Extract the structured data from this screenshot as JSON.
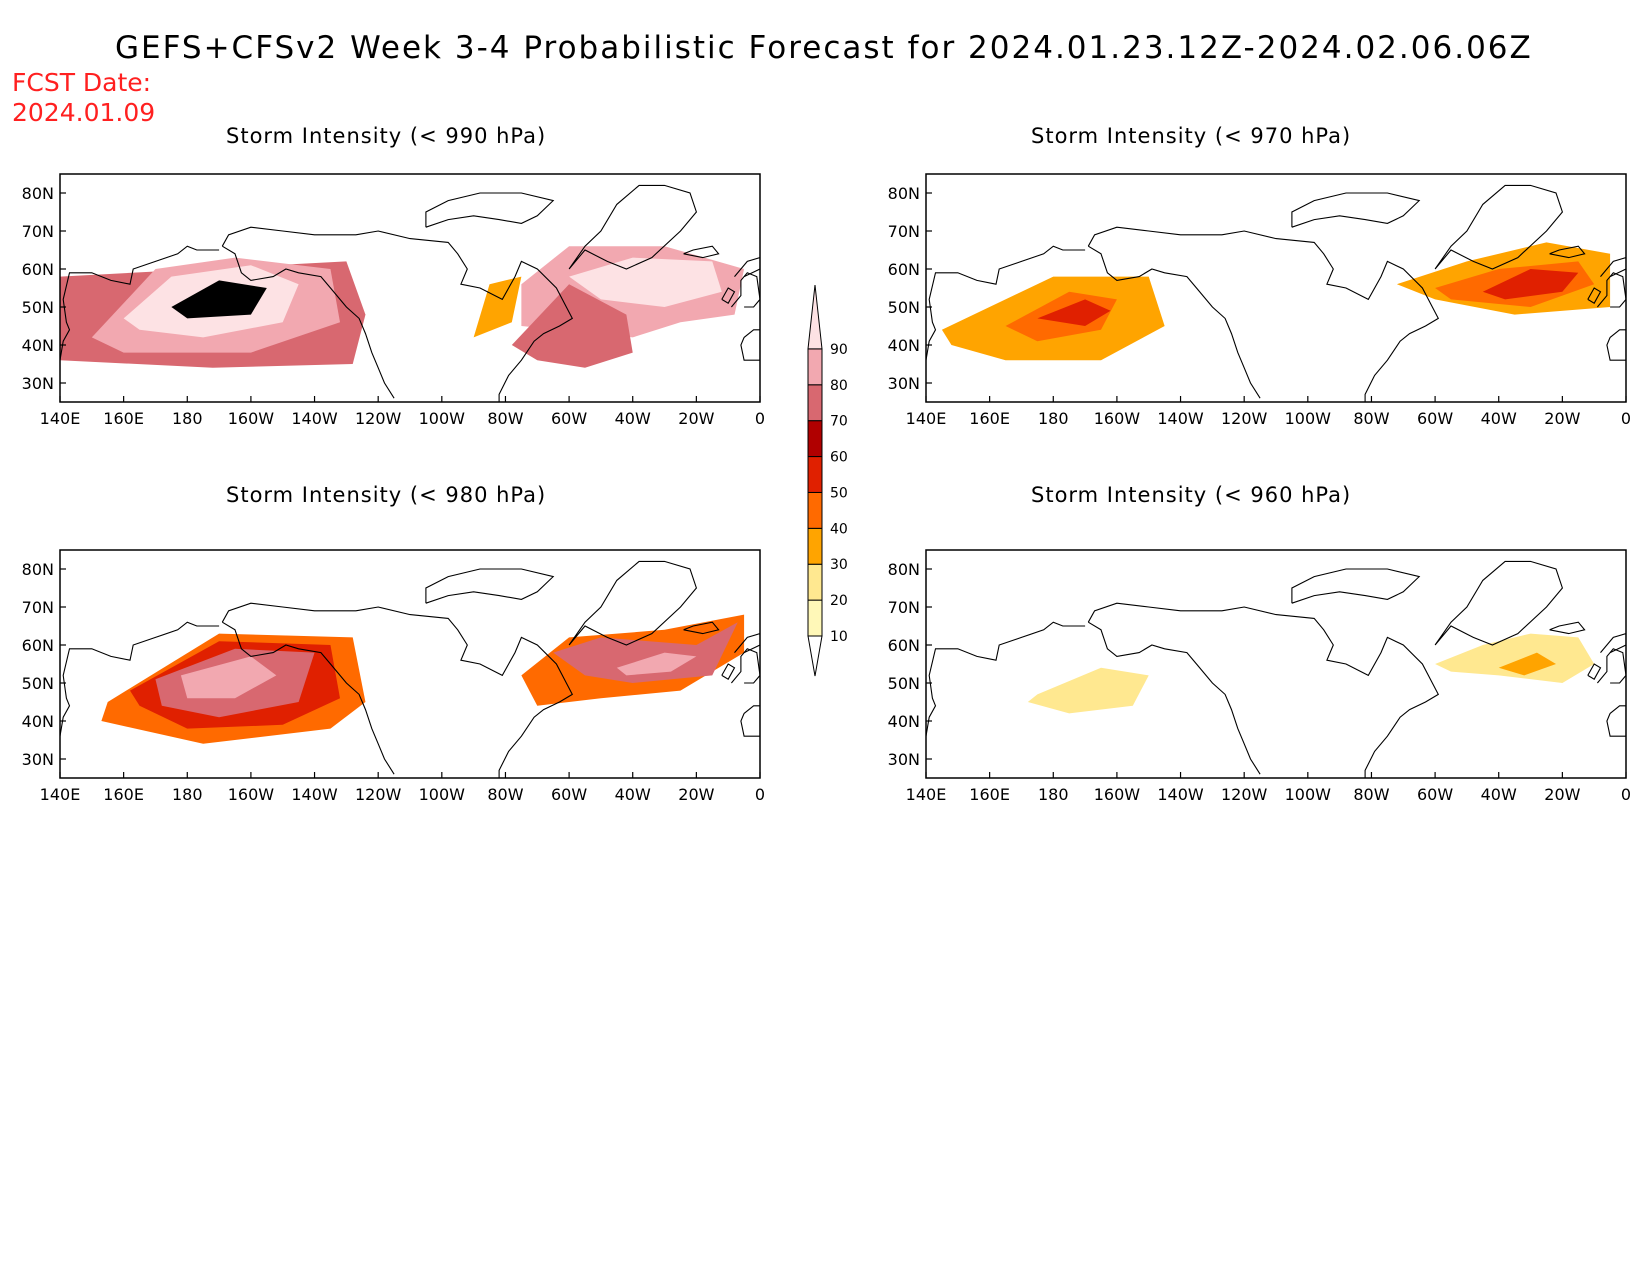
{
  "title": "GEFS+CFSv2 Week 3-4 Probabilistic Forecast for 2024.01.23.12Z-2024.02.06.06Z",
  "fcst_label": "FCST Date:",
  "fcst_date": "2024.01.09",
  "panels": [
    {
      "id": "p990",
      "title": "Storm Intensity (< 990 hPa)"
    },
    {
      "id": "p970",
      "title": "Storm Intensity (< 970 hPa)"
    },
    {
      "id": "p980",
      "title": "Storm Intensity (< 980 hPa)"
    },
    {
      "id": "p960",
      "title": "Storm Intensity (< 960 hPa)"
    }
  ],
  "lon_labels": [
    "140E",
    "160E",
    "180",
    "160W",
    "140W",
    "120W",
    "100W",
    "80W",
    "60W",
    "40W",
    "20W",
    "0"
  ],
  "lat_labels": [
    "80N",
    "70N",
    "60N",
    "50N",
    "40N",
    "30N"
  ],
  "colorbar": {
    "levels": [
      "10",
      "20",
      "30",
      "40",
      "50",
      "60",
      "70",
      "80",
      "90"
    ],
    "colors": [
      "#fff8b8",
      "#ffe890",
      "#ffa400",
      "#ff6a00",
      "#e02000",
      "#b00000",
      "#d86870",
      "#f2a8b0",
      "#fde2e4"
    ]
  },
  "blobs": {
    "p990": [
      {
        "lon": [
          140,
          188,
          232,
          236,
          230,
          140
        ],
        "lat": [
          36,
          34,
          35,
          48,
          62,
          58
        ],
        "cls": 6
      },
      {
        "lon": [
          150,
          170,
          195,
          225,
          228,
          200,
          160,
          150
        ],
        "lat": [
          42,
          60,
          63,
          60,
          46,
          38,
          38,
          42
        ],
        "cls": 7
      },
      {
        "lon": [
          160,
          175,
          200,
          215,
          210,
          185,
          165
        ],
        "lat": [
          47,
          58,
          61,
          56,
          46,
          42,
          44
        ],
        "cls": 8
      },
      {
        "lon": [
          175,
          190,
          205,
          200,
          180
        ],
        "lat": [
          50,
          57,
          55,
          48,
          47
        ],
        "cls": 9
      },
      {
        "lon": [
          285,
          300,
          330,
          355,
          352,
          335,
          320,
          285
        ],
        "lat": [
          56,
          66,
          66,
          60,
          48,
          46,
          42,
          45
        ],
        "cls": 7
      },
      {
        "lon": [
          300,
          320,
          345,
          348,
          330,
          310
        ],
        "lat": [
          58,
          63,
          62,
          54,
          50,
          52
        ],
        "cls": 8
      },
      {
        "lon": [
          282,
          300,
          318,
          320,
          305,
          290
        ],
        "lat": [
          40,
          56,
          48,
          38,
          34,
          36
        ],
        "cls": 6
      },
      {
        "lon": [
          270,
          282,
          285,
          275
        ],
        "lat": [
          42,
          46,
          58,
          56
        ],
        "cls": 2
      }
    ],
    "p970": [
      {
        "lon": [
          145,
          180,
          210,
          215,
          195,
          165,
          148
        ],
        "lat": [
          44,
          58,
          58,
          45,
          36,
          36,
          40
        ],
        "cls": 2
      },
      {
        "lon": [
          165,
          185,
          200,
          195,
          175
        ],
        "lat": [
          45,
          54,
          52,
          44,
          41
        ],
        "cls": 3
      },
      {
        "lon": [
          175,
          190,
          198,
          190
        ],
        "lat": [
          47,
          52,
          49,
          45
        ],
        "cls": 4
      },
      {
        "lon": [
          288,
          310,
          335,
          355,
          355,
          325,
          300
        ],
        "lat": [
          56,
          62,
          67,
          64,
          50,
          48,
          52
        ],
        "cls": 2
      },
      {
        "lon": [
          300,
          320,
          345,
          350,
          330,
          305
        ],
        "lat": [
          55,
          60,
          62,
          56,
          50,
          52
        ],
        "cls": 3
      },
      {
        "lon": [
          315,
          330,
          345,
          340,
          322
        ],
        "lat": [
          54,
          60,
          59,
          54,
          52
        ],
        "cls": 4
      }
    ],
    "p980": [
      {
        "lon": [
          155,
          190,
          232,
          236,
          225,
          185,
          153
        ],
        "lat": [
          45,
          63,
          62,
          45,
          38,
          34,
          40
        ],
        "cls": 3
      },
      {
        "lon": [
          162,
          190,
          225,
          228,
          210,
          180,
          165
        ],
        "lat": [
          48,
          61,
          60,
          46,
          39,
          38,
          44
        ],
        "cls": 4
      },
      {
        "lon": [
          170,
          195,
          220,
          215,
          190,
          172
        ],
        "lat": [
          51,
          59,
          58,
          45,
          41,
          44
        ],
        "cls": 6
      },
      {
        "lon": [
          178,
          200,
          208,
          195,
          180
        ],
        "lat": [
          52,
          57,
          52,
          46,
          46
        ],
        "cls": 7
      },
      {
        "lon": [
          285,
          300,
          330,
          355,
          355,
          335,
          310,
          290
        ],
        "lat": [
          52,
          62,
          64,
          68,
          58,
          48,
          46,
          44
        ],
        "cls": 3
      },
      {
        "lon": [
          295,
          310,
          340,
          353,
          345,
          320,
          305
        ],
        "lat": [
          58,
          62,
          60,
          66,
          52,
          50,
          52
        ],
        "cls": 6
      },
      {
        "lon": [
          315,
          330,
          340,
          332,
          318
        ],
        "lat": [
          54,
          58,
          57,
          53,
          52
        ],
        "cls": 7
      }
    ],
    "p960": [
      {
        "lon": [
          175,
          195,
          210,
          205,
          185,
          172
        ],
        "lat": [
          47,
          54,
          52,
          44,
          42,
          45
        ],
        "cls": 1
      },
      {
        "lon": [
          300,
          315,
          330,
          345,
          350,
          340,
          320,
          305
        ],
        "lat": [
          55,
          60,
          63,
          62,
          55,
          50,
          52,
          53
        ],
        "cls": 1
      },
      {
        "lon": [
          320,
          332,
          338,
          328
        ],
        "lat": [
          54,
          58,
          55,
          52
        ],
        "cls": 2
      }
    ]
  }
}
